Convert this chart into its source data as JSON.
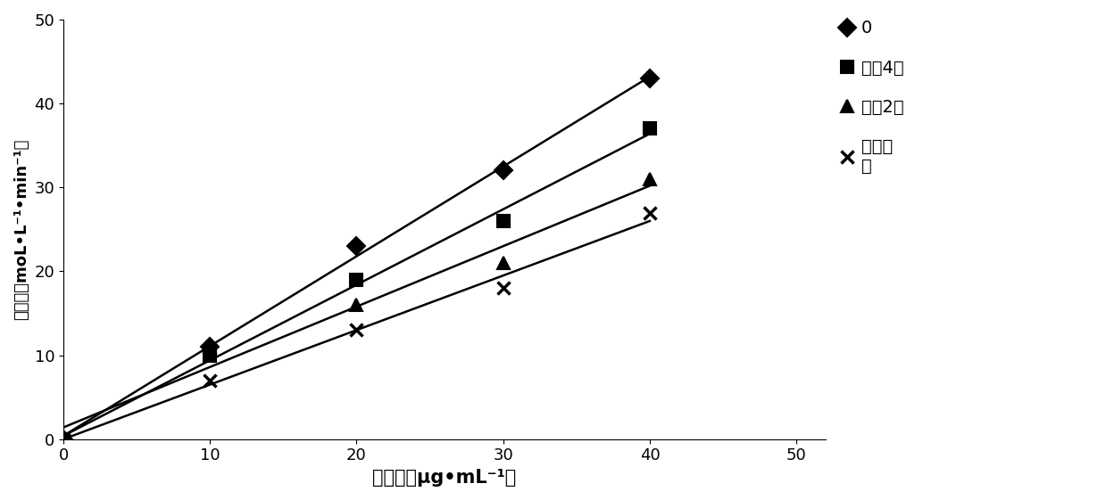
{
  "series": [
    {
      "label": "0",
      "marker": "D",
      "x": [
        0,
        10,
        20,
        30,
        40
      ],
      "y": [
        0,
        11,
        23,
        32,
        43
      ],
      "color": "#000000",
      "markersize": 10,
      "markeredgewidth": 1.5
    },
    {
      "label": "稀释4倍",
      "marker": "s",
      "x": [
        0,
        10,
        20,
        30,
        40
      ],
      "y": [
        0,
        10,
        19,
        26,
        37
      ],
      "color": "#000000",
      "markersize": 10,
      "markeredgewidth": 1.5
    },
    {
      "label": "稀释2倍",
      "marker": "^",
      "x": [
        0,
        10,
        20,
        30,
        40
      ],
      "y": [
        0,
        11,
        16,
        21,
        31
      ],
      "color": "#000000",
      "markersize": 10,
      "markeredgewidth": 1.5
    },
    {
      "label": "原菌悉\n液",
      "marker": "x",
      "x": [
        0,
        10,
        20,
        30,
        40
      ],
      "y": [
        0,
        7,
        13,
        18,
        27
      ],
      "color": "#000000",
      "markersize": 10,
      "markeredgewidth": 2.5
    }
  ],
  "xlabel": "齄浓度（μg•mL⁻¹）",
  "ylabel": "齄活力（moL•L⁻¹•min⁻¹）",
  "xlim": [
    0,
    52
  ],
  "ylim": [
    0,
    50
  ],
  "xticks": [
    0,
    10,
    20,
    30,
    40,
    50
  ],
  "yticks": [
    0,
    10,
    20,
    30,
    40,
    50
  ],
  "xlabel_fontsize": 15,
  "ylabel_fontsize": 13,
  "tick_fontsize": 13,
  "legend_fontsize": 14,
  "linewidth": 1.8
}
